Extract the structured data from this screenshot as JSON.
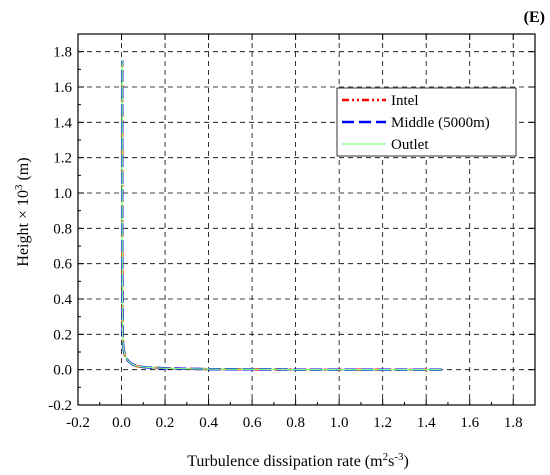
{
  "chart_data": {
    "type": "line",
    "panel_label": "(E)",
    "xlabel": "Turbulence dissipation rate (m²s⁻³)",
    "ylabel": "Height × 10³ (m)",
    "xlim": [
      -0.2,
      1.9
    ],
    "ylim": [
      -0.2,
      1.9
    ],
    "xticks": [
      "-0.2",
      "0.0",
      "0.2",
      "0.4",
      "0.6",
      "0.8",
      "1.0",
      "1.2",
      "1.4",
      "1.6",
      "1.8"
    ],
    "yticks": [
      "-0.2",
      "0.0",
      "0.2",
      "0.4",
      "0.6",
      "0.8",
      "1.0",
      "1.2",
      "1.4",
      "1.6",
      "1.8"
    ],
    "grid": true,
    "legend_position": "top-right",
    "series": [
      {
        "name": "Intel",
        "color": "#ff0000",
        "style": "dash-dot-dot",
        "x": [
          1.47,
          1.2,
          1.0,
          0.8,
          0.6,
          0.4,
          0.3,
          0.2,
          0.15,
          0.1,
          0.07,
          0.05,
          0.03,
          0.015,
          0.008,
          0.005,
          0.004,
          0.003,
          0.003,
          0.003
        ],
        "y": [
          0.0,
          0.0,
          0.0,
          0.0,
          0.002,
          0.003,
          0.005,
          0.008,
          0.01,
          0.015,
          0.02,
          0.03,
          0.05,
          0.08,
          0.13,
          0.2,
          0.4,
          0.8,
          1.3,
          1.75
        ]
      },
      {
        "name": "Middle (5000m)",
        "color": "#0000ff",
        "style": "dash",
        "x": [
          1.47,
          1.2,
          1.0,
          0.8,
          0.6,
          0.4,
          0.3,
          0.2,
          0.15,
          0.1,
          0.07,
          0.05,
          0.03,
          0.015,
          0.008,
          0.005,
          0.004,
          0.003,
          0.003,
          0.003
        ],
        "y": [
          0.0,
          0.0,
          0.0,
          0.0,
          0.002,
          0.003,
          0.005,
          0.008,
          0.01,
          0.015,
          0.02,
          0.03,
          0.05,
          0.08,
          0.13,
          0.2,
          0.4,
          0.8,
          1.3,
          1.75
        ]
      },
      {
        "name": "Outlet",
        "color": "#7fff7f",
        "style": "solid",
        "x": [
          1.47,
          1.2,
          1.0,
          0.8,
          0.6,
          0.4,
          0.3,
          0.2,
          0.15,
          0.1,
          0.07,
          0.05,
          0.03,
          0.015,
          0.008,
          0.005,
          0.004,
          0.003,
          0.003,
          0.003
        ],
        "y": [
          0.0,
          0.0,
          0.0,
          0.0,
          0.002,
          0.003,
          0.005,
          0.008,
          0.01,
          0.015,
          0.02,
          0.03,
          0.05,
          0.08,
          0.13,
          0.2,
          0.4,
          0.8,
          1.3,
          1.75
        ]
      }
    ]
  }
}
